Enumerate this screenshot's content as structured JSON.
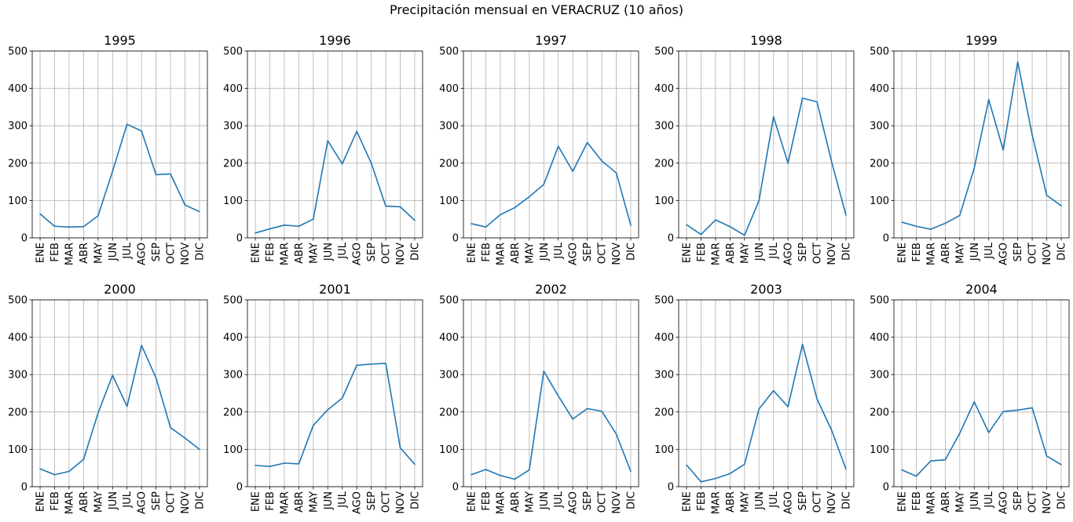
{
  "figure_title": "Precipitación mensual en VERACRUZ (10 años)",
  "line_color": "#1f77b4",
  "grid_color": "#b0b0b0",
  "chart_data": [
    {
      "type": "line",
      "title": "1995",
      "categories": [
        "ENE",
        "FEB",
        "MAR",
        "ABR",
        "MAY",
        "JUN",
        "JUL",
        "AGO",
        "SEP",
        "OCT",
        "NOV",
        "DIC"
      ],
      "values": [
        64,
        31,
        29,
        30,
        59,
        178,
        304,
        286,
        169,
        171,
        88,
        70
      ],
      "ylim": [
        0,
        500
      ],
      "yticks": [
        0,
        100,
        200,
        300,
        400,
        500
      ],
      "grid": true
    },
    {
      "type": "line",
      "title": "1996",
      "categories": [
        "ENE",
        "FEB",
        "MAR",
        "ABR",
        "MAY",
        "JUN",
        "JUL",
        "AGO",
        "SEP",
        "OCT",
        "NOV",
        "DIC"
      ],
      "values": [
        13,
        24,
        34,
        31,
        50,
        260,
        198,
        285,
        200,
        85,
        83,
        47
      ],
      "ylim": [
        0,
        500
      ],
      "yticks": [
        0,
        100,
        200,
        300,
        400,
        500
      ],
      "grid": true
    },
    {
      "type": "line",
      "title": "1997",
      "categories": [
        "ENE",
        "FEB",
        "MAR",
        "ABR",
        "MAY",
        "JUN",
        "JUL",
        "AGO",
        "SEP",
        "OCT",
        "NOV",
        "DIC"
      ],
      "values": [
        38,
        29,
        62,
        81,
        110,
        143,
        245,
        178,
        255,
        206,
        174,
        34
      ],
      "ylim": [
        0,
        500
      ],
      "yticks": [
        0,
        100,
        200,
        300,
        400,
        500
      ],
      "grid": true
    },
    {
      "type": "line",
      "title": "1998",
      "categories": [
        "ENE",
        "FEB",
        "MAR",
        "ABR",
        "MAY",
        "JUN",
        "JUL",
        "AGO",
        "SEP",
        "OCT",
        "NOV",
        "DIC"
      ],
      "values": [
        35,
        9,
        48,
        30,
        7,
        100,
        324,
        200,
        374,
        364,
        205,
        61
      ],
      "ylim": [
        0,
        500
      ],
      "yticks": [
        0,
        100,
        200,
        300,
        400,
        500
      ],
      "grid": true
    },
    {
      "type": "line",
      "title": "1999",
      "categories": [
        "ENE",
        "FEB",
        "MAR",
        "ABR",
        "MAY",
        "JUN",
        "JUL",
        "AGO",
        "SEP",
        "OCT",
        "NOV",
        "DIC"
      ],
      "values": [
        42,
        31,
        23,
        39,
        60,
        187,
        370,
        235,
        471,
        275,
        114,
        86
      ],
      "ylim": [
        0,
        500
      ],
      "yticks": [
        0,
        100,
        200,
        300,
        400,
        500
      ],
      "grid": true
    },
    {
      "type": "line",
      "title": "2000",
      "categories": [
        "ENE",
        "FEB",
        "MAR",
        "ABR",
        "MAY",
        "JUN",
        "JUL",
        "AGO",
        "SEP",
        "OCT",
        "NOV",
        "DIC"
      ],
      "values": [
        48,
        32,
        41,
        73,
        197,
        298,
        215,
        378,
        291,
        158,
        130,
        100
      ],
      "ylim": [
        0,
        500
      ],
      "yticks": [
        0,
        100,
        200,
        300,
        400,
        500
      ],
      "grid": true
    },
    {
      "type": "line",
      "title": "2001",
      "categories": [
        "ENE",
        "FEB",
        "MAR",
        "ABR",
        "MAY",
        "JUN",
        "JUL",
        "AGO",
        "SEP",
        "OCT",
        "NOV",
        "DIC"
      ],
      "values": [
        57,
        54,
        63,
        61,
        164,
        206,
        237,
        325,
        328,
        330,
        104,
        60
      ],
      "ylim": [
        0,
        500
      ],
      "yticks": [
        0,
        100,
        200,
        300,
        400,
        500
      ],
      "grid": true
    },
    {
      "type": "line",
      "title": "2002",
      "categories": [
        "ENE",
        "FEB",
        "MAR",
        "ABR",
        "MAY",
        "JUN",
        "JUL",
        "AGO",
        "SEP",
        "OCT",
        "NOV",
        "DIC"
      ],
      "values": [
        32,
        46,
        30,
        20,
        45,
        309,
        243,
        181,
        209,
        202,
        141,
        41
      ],
      "ylim": [
        0,
        500
      ],
      "yticks": [
        0,
        100,
        200,
        300,
        400,
        500
      ],
      "grid": true
    },
    {
      "type": "line",
      "title": "2003",
      "categories": [
        "ENE",
        "FEB",
        "MAR",
        "ABR",
        "MAY",
        "JUN",
        "JUL",
        "AGO",
        "SEP",
        "OCT",
        "NOV",
        "DIC"
      ],
      "values": [
        58,
        13,
        22,
        35,
        60,
        208,
        257,
        214,
        381,
        235,
        152,
        47
      ],
      "ylim": [
        0,
        500
      ],
      "yticks": [
        0,
        100,
        200,
        300,
        400,
        500
      ],
      "grid": true
    },
    {
      "type": "line",
      "title": "2004",
      "categories": [
        "ENE",
        "FEB",
        "MAR",
        "ABR",
        "MAY",
        "JUN",
        "JUL",
        "AGO",
        "SEP",
        "OCT",
        "NOV",
        "DIC"
      ],
      "values": [
        45,
        28,
        69,
        72,
        143,
        227,
        145,
        201,
        205,
        211,
        82,
        59
      ],
      "ylim": [
        0,
        500
      ],
      "yticks": [
        0,
        100,
        200,
        300,
        400,
        500
      ],
      "grid": true
    }
  ]
}
